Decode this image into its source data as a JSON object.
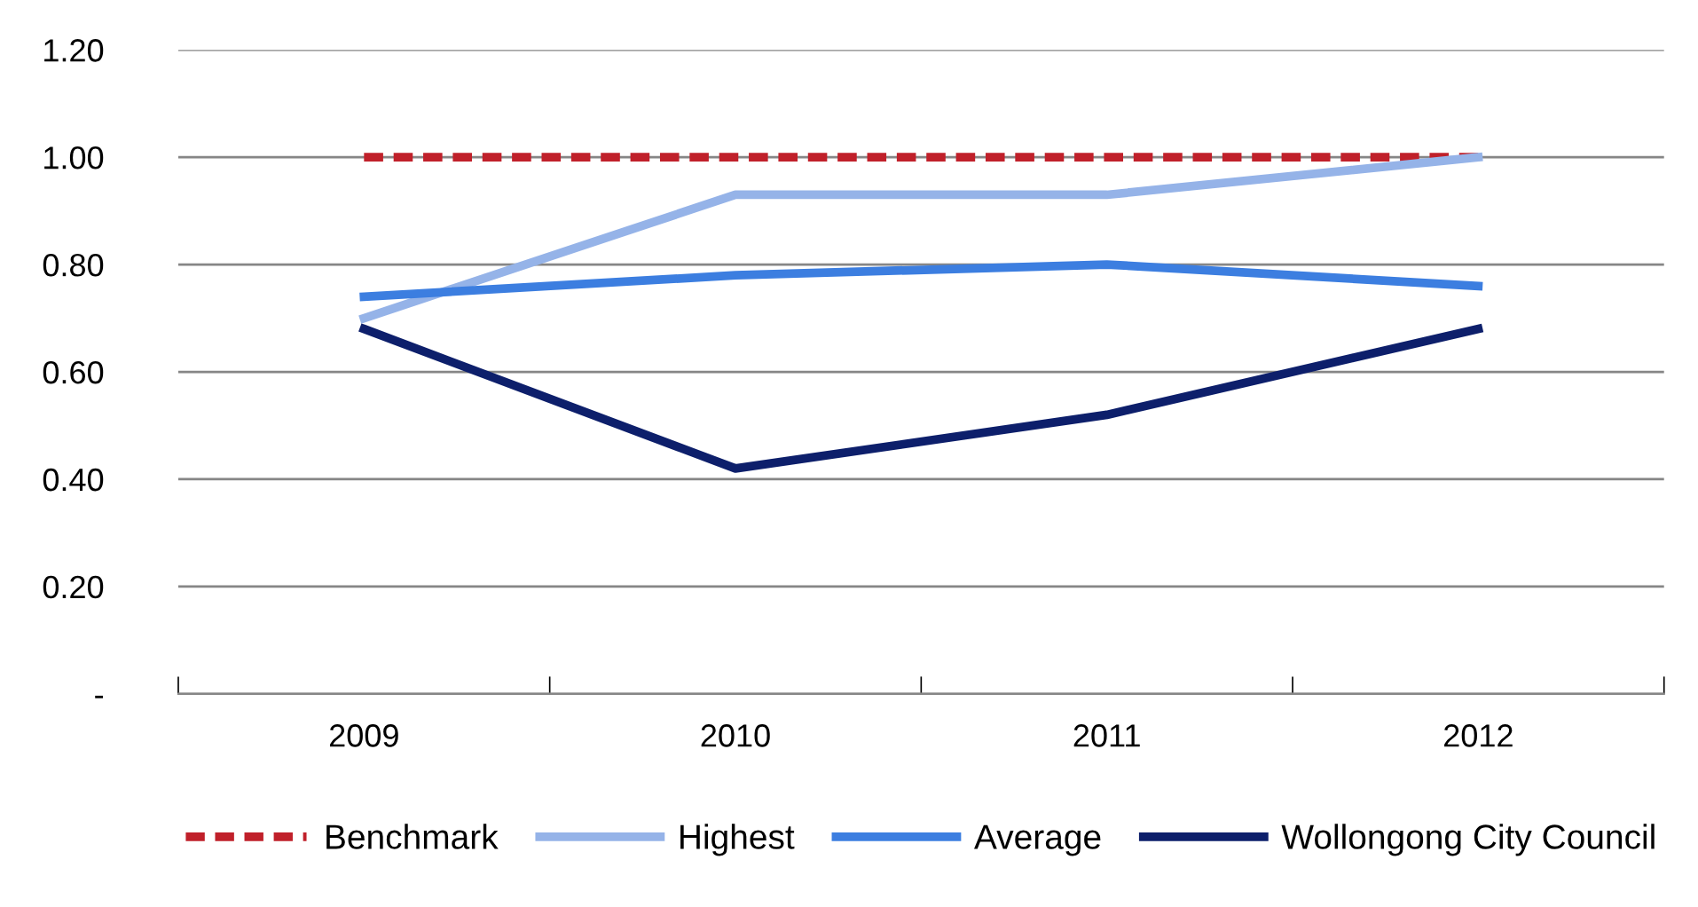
{
  "chart_data": {
    "type": "line",
    "categories": [
      "2009",
      "2010",
      "2011",
      "2012"
    ],
    "series": [
      {
        "name": "Benchmark",
        "color": "#c0202a",
        "values": [
          1.0,
          1.0,
          1.0,
          1.0
        ],
        "line_style": "dashed"
      },
      {
        "name": "Highest",
        "color": "#95b3e8",
        "values": [
          0.7,
          0.93,
          0.93,
          1.0
        ]
      },
      {
        "name": "Average",
        "color": "#3c7ee0",
        "values": [
          0.74,
          0.78,
          0.8,
          0.76
        ]
      },
      {
        "name": "Wollongong City Council",
        "color": "#0d1f6b",
        "values": [
          0.68,
          0.42,
          0.52,
          0.68
        ]
      }
    ],
    "ylim": [
      0,
      1.2
    ],
    "yticks": [
      {
        "value": 0,
        "label": "-"
      },
      {
        "value": 0.2,
        "label": "0.20"
      },
      {
        "value": 0.4,
        "label": "0.40"
      },
      {
        "value": 0.6,
        "label": "0.60"
      },
      {
        "value": 0.8,
        "label": "0.80"
      },
      {
        "value": 1.0,
        "label": "1.00"
      },
      {
        "value": 1.2,
        "label": "1.20"
      }
    ],
    "grid": "y",
    "legend": "bottom",
    "marker": "none"
  }
}
